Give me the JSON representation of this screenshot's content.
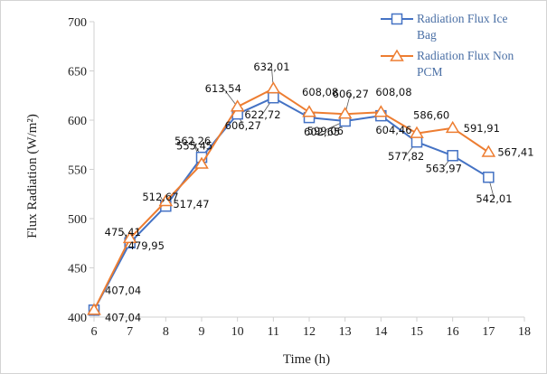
{
  "chart_data": {
    "type": "line",
    "title": "",
    "xlabel": "Time (h)",
    "ylabel": "Flux Radiation (W/m²)",
    "xlim": [
      6,
      18
    ],
    "ylim": [
      400,
      700
    ],
    "x_ticks": [
      "6",
      "7",
      "8",
      "9",
      "10",
      "11",
      "12",
      "13",
      "14",
      "15",
      "16",
      "17",
      "18"
    ],
    "y_ticks": [
      "400",
      "450",
      "500",
      "550",
      "600",
      "650",
      "700"
    ],
    "grid": false,
    "legend_position": "top-right",
    "series": [
      {
        "name": "Radiation Flux Ice Bag",
        "color": "#4472c4",
        "marker": "square",
        "x": [
          6,
          7,
          8,
          9,
          10,
          11,
          12,
          13,
          14,
          15,
          16,
          17
        ],
        "values": [
          407.04,
          475.41,
          512.67,
          562.26,
          606.27,
          622.72,
          602.65,
          599.06,
          604.46,
          577.82,
          563.97,
          542.01
        ],
        "labels": [
          "407,04",
          "475,41",
          "512,67",
          "562,26",
          "606,27",
          "622,72",
          "602,65",
          "599,06",
          "604,46",
          "577,82",
          "563,97",
          "542,01"
        ]
      },
      {
        "name": "Radiation Flux Non PCM",
        "color": "#ed7d31",
        "marker": "triangle",
        "x": [
          6,
          7,
          8,
          9,
          10,
          11,
          12,
          13,
          14,
          15,
          16,
          17
        ],
        "values": [
          407.04,
          479.95,
          517.47,
          555.45,
          613.54,
          632.01,
          608.08,
          606.27,
          608.08,
          586.6,
          591.91,
          567.41
        ],
        "labels": [
          "407,04",
          "479,95",
          "517,47",
          "555,45",
          "613,54",
          "632,01",
          "608,08",
          "606,27",
          "608,08",
          "586,60",
          "591,91",
          "567,41"
        ]
      }
    ]
  },
  "legend": {
    "items": [
      {
        "line1": "Radiation Flux Ice",
        "line2": "Bag"
      },
      {
        "line1": "Radiation Flux Non",
        "line2": "PCM"
      }
    ]
  }
}
